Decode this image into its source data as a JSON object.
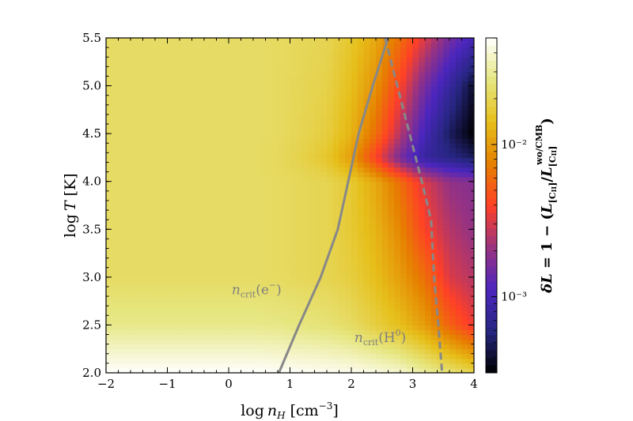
{
  "chart_data": {
    "type": "heatmap",
    "xlabel": "log n_H [cm^-3]",
    "ylabel": "log T [K]",
    "xlim": [
      -2,
      4
    ],
    "ylim": [
      2.0,
      5.5
    ],
    "xticks": [
      "−2",
      "−1",
      "0",
      "1",
      "2",
      "3",
      "4"
    ],
    "yticks": [
      "2.0",
      "2.5",
      "3.0",
      "3.5",
      "4.0",
      "4.5",
      "5.0",
      "5.5"
    ],
    "x_grid": [
      -2.0,
      -1.6,
      -1.2,
      -0.8,
      -0.4,
      0.0,
      0.4,
      0.8,
      1.2,
      1.6,
      2.0,
      2.4,
      2.8,
      3.2,
      3.6,
      4.0
    ],
    "y_grid": [
      2.0,
      2.5,
      3.0,
      3.5,
      4.0,
      4.25,
      4.5,
      5.0,
      5.5
    ],
    "z_log10": [
      [
        -1.3,
        -1.3,
        -1.3,
        -1.3,
        -1.3,
        -1.3,
        -1.3,
        -1.31,
        -1.32,
        -1.33,
        -1.34,
        -1.36,
        -1.4,
        -1.5,
        -1.6,
        -1.7
      ],
      [
        -1.55,
        -1.55,
        -1.55,
        -1.55,
        -1.55,
        -1.55,
        -1.55,
        -1.56,
        -1.58,
        -1.6,
        -1.65,
        -1.75,
        -1.85,
        -2.0,
        -2.25,
        -2.45
      ],
      [
        -1.65,
        -1.65,
        -1.65,
        -1.65,
        -1.65,
        -1.65,
        -1.65,
        -1.66,
        -1.68,
        -1.7,
        -1.75,
        -1.85,
        -2.0,
        -2.2,
        -2.5,
        -2.6
      ],
      [
        -1.65,
        -1.65,
        -1.65,
        -1.65,
        -1.65,
        -1.65,
        -1.65,
        -1.66,
        -1.68,
        -1.7,
        -1.78,
        -1.9,
        -2.1,
        -2.4,
        -2.6,
        -2.7
      ],
      [
        -1.65,
        -1.65,
        -1.65,
        -1.65,
        -1.65,
        -1.65,
        -1.65,
        -1.66,
        -1.68,
        -1.7,
        -1.78,
        -1.95,
        -2.2,
        -2.5,
        -2.7,
        -2.75
      ],
      [
        -1.65,
        -1.65,
        -1.65,
        -1.65,
        -1.65,
        -1.65,
        -1.65,
        -1.67,
        -1.72,
        -1.8,
        -2.0,
        -2.4,
        -2.8,
        -3.1,
        -3.2,
        -3.3
      ],
      [
        -1.65,
        -1.65,
        -1.65,
        -1.65,
        -1.65,
        -1.65,
        -1.65,
        -1.66,
        -1.7,
        -1.75,
        -1.9,
        -2.2,
        -2.6,
        -3.0,
        -3.3,
        -3.5
      ],
      [
        -1.65,
        -1.65,
        -1.65,
        -1.65,
        -1.65,
        -1.65,
        -1.65,
        -1.66,
        -1.69,
        -1.72,
        -1.85,
        -2.05,
        -2.4,
        -2.8,
        -3.1,
        -3.4
      ],
      [
        -1.65,
        -1.65,
        -1.65,
        -1.65,
        -1.65,
        -1.65,
        -1.65,
        -1.66,
        -1.68,
        -1.7,
        -1.8,
        -1.95,
        -2.2,
        -2.5,
        -2.8,
        -3.0
      ]
    ],
    "colorbar": {
      "label": "δL = 1 − (L[CII] / L[CII]^wo/CMB)",
      "scale": "log",
      "range": [
        -3.5,
        -1.3
      ],
      "ticks": [
        {
          "value": -2,
          "label": "10⁻²"
        },
        {
          "value": -3,
          "label": "10⁻³"
        }
      ]
    },
    "lines": [
      {
        "name": "n_crit(e⁻)",
        "style": "solid",
        "color": "#888888",
        "x": [
          0.82,
          1.15,
          1.5,
          1.78,
          1.95,
          2.12,
          2.35,
          2.6
        ],
        "y": [
          2.0,
          2.5,
          3.0,
          3.5,
          4.0,
          4.5,
          5.0,
          5.5
        ]
      },
      {
        "name": "n_crit(H⁰)",
        "style": "dashed",
        "color": "#888888",
        "x": [
          2.55,
          2.75,
          2.95,
          3.15,
          3.3,
          3.35,
          3.42,
          3.48
        ],
        "y": [
          5.5,
          5.0,
          4.5,
          4.0,
          3.6,
          3.0,
          2.5,
          2.0
        ]
      }
    ],
    "annotations": [
      {
        "text": "n_crit(e⁻)",
        "x": 0.05,
        "y": 2.82
      },
      {
        "text": "n_crit(H⁰)",
        "x": 2.05,
        "y": 2.32
      }
    ]
  }
}
